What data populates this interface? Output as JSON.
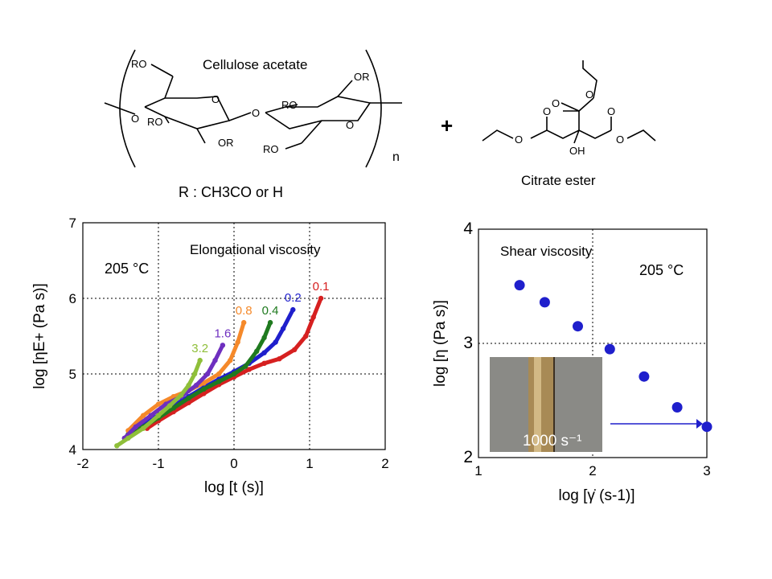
{
  "scheme": {
    "cellulose_label": "Cellulose acetate",
    "citrate_label": "Citrate ester",
    "plus": "+",
    "repeat_n": "n",
    "r_definition": "R : CH3CO or H",
    "atoms": {
      "RO": "RO",
      "OR": "OR",
      "O": "O",
      "OH": "OH"
    }
  },
  "chart_data": [
    {
      "type": "scatter",
      "title": "Elongational viscosity",
      "annotation": "205 °C",
      "xlabel": "log [t (s)]",
      "ylabel": "log [ηE+ (Pa s)]",
      "xlim": [
        -2,
        2
      ],
      "ylim": [
        4,
        7
      ],
      "xticks": [
        "-2",
        "-1",
        "0",
        "1",
        "2"
      ],
      "yticks": [
        "4",
        "5",
        "6",
        "7"
      ],
      "grid": "dotted",
      "series": [
        {
          "name": "0.1",
          "color": "#d62020",
          "x": [
            -1.15,
            -1.0,
            -0.8,
            -0.6,
            -0.4,
            -0.2,
            0.0,
            0.2,
            0.4,
            0.6,
            0.8,
            0.95,
            1.05,
            1.15
          ],
          "y": [
            4.28,
            4.38,
            4.5,
            4.62,
            4.74,
            4.86,
            4.96,
            5.06,
            5.14,
            5.2,
            5.32,
            5.5,
            5.75,
            6.0
          ]
        },
        {
          "name": "0.2",
          "color": "#1f1fcc",
          "x": [
            -1.35,
            -1.2,
            -1.0,
            -0.8,
            -0.6,
            -0.4,
            -0.2,
            0.0,
            0.2,
            0.4,
            0.55,
            0.65,
            0.78
          ],
          "y": [
            4.28,
            4.35,
            4.45,
            4.58,
            4.7,
            4.82,
            4.93,
            5.03,
            5.14,
            5.28,
            5.42,
            5.6,
            5.85
          ]
        },
        {
          "name": "0.4",
          "color": "#1f7a1f",
          "x": [
            -1.4,
            -1.2,
            -1.0,
            -0.8,
            -0.6,
            -0.4,
            -0.2,
            0.0,
            0.15,
            0.3,
            0.4,
            0.48
          ],
          "y": [
            4.2,
            4.3,
            4.42,
            4.55,
            4.68,
            4.8,
            4.9,
            5.0,
            5.1,
            5.3,
            5.48,
            5.68
          ]
        },
        {
          "name": "0.8",
          "color": "#f5892a",
          "x": [
            -1.4,
            -1.2,
            -1.0,
            -0.8,
            -0.6,
            -0.4,
            -0.2,
            -0.05,
            0.05,
            0.13
          ],
          "y": [
            4.25,
            4.45,
            4.6,
            4.7,
            4.78,
            4.88,
            5.0,
            5.18,
            5.42,
            5.68
          ]
        },
        {
          "name": "1.6",
          "color": "#6e2fbf",
          "x": [
            -1.45,
            -1.3,
            -1.1,
            -0.9,
            -0.7,
            -0.5,
            -0.35,
            -0.25,
            -0.15
          ],
          "y": [
            4.15,
            4.3,
            4.45,
            4.6,
            4.7,
            4.85,
            5.0,
            5.18,
            5.38
          ]
        },
        {
          "name": "3.2",
          "color": "#8fbf3a",
          "x": [
            -1.55,
            -1.4,
            -1.2,
            -1.0,
            -0.85,
            -0.7,
            -0.6,
            -0.52,
            -0.45
          ],
          "y": [
            4.05,
            4.15,
            4.28,
            4.45,
            4.58,
            4.72,
            4.85,
            5.0,
            5.18
          ]
        }
      ]
    },
    {
      "type": "scatter",
      "title": "Shear viscosity",
      "annotation": "205 °C",
      "xlabel": "log [γ̇ (s-1)]",
      "ylabel": "log [η (Pa s)]",
      "xlim": [
        1,
        3
      ],
      "ylim": [
        2,
        4
      ],
      "xticks": [
        "1",
        "2",
        "3"
      ],
      "yticks": [
        "2",
        "3",
        "4"
      ],
      "grid": "dotted",
      "inset_label": "1000 s⁻¹",
      "series": [
        {
          "name": "",
          "color": "#1f1fcc",
          "x": [
            1.36,
            1.58,
            1.87,
            2.15,
            2.45,
            2.74,
            3.0
          ],
          "y": [
            3.51,
            3.36,
            3.15,
            2.95,
            2.71,
            2.44,
            2.27
          ]
        }
      ]
    }
  ]
}
